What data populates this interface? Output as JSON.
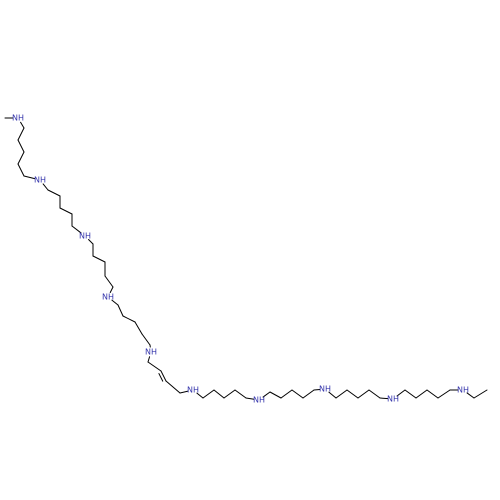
{
  "molecule": {
    "bond_color": "#000000",
    "nitrogen_color": "#3333aa",
    "nitrogen_label": "NH",
    "nitrogen_count": 10
  }
}
